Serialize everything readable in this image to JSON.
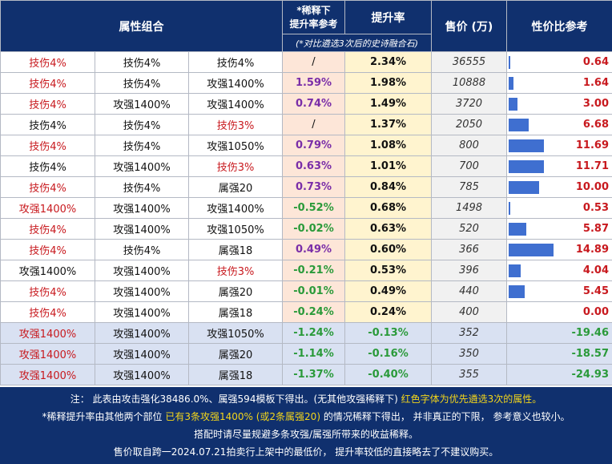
{
  "header": {
    "attr_combo": "属性组合",
    "dilution": "*稀释下\n提升率参考",
    "dilution_line1": "*稀释下",
    "dilution_line2": "提升率参考",
    "dilution_sub": "(*对比遴选3次后的史诗融合石)",
    "increase": "提升率",
    "price": "售价 (万)",
    "ratio": "性价比参考"
  },
  "bar_scale_max": 14.89,
  "rows": [
    {
      "a1": "技伤4%",
      "a1c": "red",
      "a2": "技伤4%",
      "a2c": "blk",
      "a3": "技伤4%",
      "a3c": "blk",
      "dil": "/",
      "dilt": "slash",
      "inc": "2.34%",
      "inct": "pos",
      "price": "36555",
      "ratio": "0.64",
      "low": false
    },
    {
      "a1": "技伤4%",
      "a1c": "red",
      "a2": "技伤4%",
      "a2c": "blk",
      "a3": "攻强1400%",
      "a3c": "blk",
      "dil": "1.59%",
      "dilt": "pos",
      "inc": "1.98%",
      "inct": "pos",
      "price": "10888",
      "ratio": "1.64",
      "low": false
    },
    {
      "a1": "技伤4%",
      "a1c": "red",
      "a2": "攻强1400%",
      "a2c": "blk",
      "a3": "攻强1400%",
      "a3c": "blk",
      "dil": "0.74%",
      "dilt": "pos",
      "inc": "1.49%",
      "inct": "pos",
      "price": "3720",
      "ratio": "3.00",
      "low": false
    },
    {
      "a1": "技伤4%",
      "a1c": "blk",
      "a2": "技伤4%",
      "a2c": "blk",
      "a3": "技伤3%",
      "a3c": "red",
      "dil": "/",
      "dilt": "slash",
      "inc": "1.37%",
      "inct": "pos",
      "price": "2050",
      "ratio": "6.68",
      "low": false
    },
    {
      "a1": "技伤4%",
      "a1c": "red",
      "a2": "技伤4%",
      "a2c": "blk",
      "a3": "攻强1050%",
      "a3c": "blk",
      "dil": "0.79%",
      "dilt": "pos",
      "inc": "1.08%",
      "inct": "pos",
      "price": "800",
      "ratio": "11.69",
      "low": false
    },
    {
      "a1": "技伤4%",
      "a1c": "blk",
      "a2": "攻强1400%",
      "a2c": "blk",
      "a3": "技伤3%",
      "a3c": "red",
      "dil": "0.63%",
      "dilt": "pos",
      "inc": "1.01%",
      "inct": "pos",
      "price": "700",
      "ratio": "11.71",
      "low": false
    },
    {
      "a1": "技伤4%",
      "a1c": "red",
      "a2": "技伤4%",
      "a2c": "blk",
      "a3": "属强20",
      "a3c": "blk",
      "dil": "0.73%",
      "dilt": "pos",
      "inc": "0.84%",
      "inct": "pos",
      "price": "785",
      "ratio": "10.00",
      "low": false
    },
    {
      "a1": "攻强1400%",
      "a1c": "red",
      "a2": "攻强1400%",
      "a2c": "blk",
      "a3": "攻强1400%",
      "a3c": "blk",
      "dil": "-0.52%",
      "dilt": "neg",
      "inc": "0.68%",
      "inct": "pos",
      "price": "1498",
      "ratio": "0.53",
      "low": false
    },
    {
      "a1": "技伤4%",
      "a1c": "red",
      "a2": "攻强1400%",
      "a2c": "blk",
      "a3": "攻强1050%",
      "a3c": "blk",
      "dil": "-0.02%",
      "dilt": "neg",
      "inc": "0.63%",
      "inct": "pos",
      "price": "520",
      "ratio": "5.87",
      "low": false
    },
    {
      "a1": "技伤4%",
      "a1c": "red",
      "a2": "技伤4%",
      "a2c": "blk",
      "a3": "属强18",
      "a3c": "blk",
      "dil": "0.49%",
      "dilt": "pos",
      "inc": "0.60%",
      "inct": "pos",
      "price": "366",
      "ratio": "14.89",
      "low": false
    },
    {
      "a1": "攻强1400%",
      "a1c": "blk",
      "a2": "攻强1400%",
      "a2c": "blk",
      "a3": "技伤3%",
      "a3c": "red",
      "dil": "-0.21%",
      "dilt": "neg",
      "inc": "0.53%",
      "inct": "pos",
      "price": "396",
      "ratio": "4.04",
      "low": false
    },
    {
      "a1": "技伤4%",
      "a1c": "red",
      "a2": "攻强1400%",
      "a2c": "blk",
      "a3": "属强20",
      "a3c": "blk",
      "dil": "-0.01%",
      "dilt": "neg",
      "inc": "0.49%",
      "inct": "pos",
      "price": "440",
      "ratio": "5.45",
      "low": false
    },
    {
      "a1": "技伤4%",
      "a1c": "red",
      "a2": "攻强1400%",
      "a2c": "blk",
      "a3": "属强18",
      "a3c": "blk",
      "dil": "-0.24%",
      "dilt": "neg",
      "inc": "0.24%",
      "inct": "pos",
      "price": "400",
      "ratio": "0.00",
      "low": false
    },
    {
      "a1": "攻强1400%",
      "a1c": "red",
      "a2": "攻强1400%",
      "a2c": "blk",
      "a3": "攻强1050%",
      "a3c": "blk",
      "dil": "-1.24%",
      "dilt": "neg",
      "inc": "-0.13%",
      "inct": "neg",
      "price": "352",
      "ratio": "-19.46",
      "low": true
    },
    {
      "a1": "攻强1400%",
      "a1c": "red",
      "a2": "攻强1400%",
      "a2c": "blk",
      "a3": "属强20",
      "a3c": "blk",
      "dil": "-1.14%",
      "dilt": "neg",
      "inc": "-0.16%",
      "inct": "neg",
      "price": "350",
      "ratio": "-18.57",
      "low": true
    },
    {
      "a1": "攻强1400%",
      "a1c": "red",
      "a2": "攻强1400%",
      "a2c": "blk",
      "a3": "属强18",
      "a3c": "blk",
      "dil": "-1.37%",
      "dilt": "neg",
      "inc": "-0.40%",
      "inct": "neg",
      "price": "355",
      "ratio": "-24.93",
      "low": true
    }
  ],
  "notes": {
    "line1_a": "注： 此表由攻击强化38486.0%、属强594模板下得出。(无其他攻强稀释下) ",
    "line1_b": "红色字体为优先遴选3次的属性。",
    "line2_a": "*稀释提升率由其他两个部位 ",
    "line2_b": "已有3条攻强1400% (或2条属强20)",
    "line2_c": " 的情况稀释下得出， 并非真正的下限， 参考意义也较小。",
    "line3": "搭配时请尽量规避多条攻强/属强所带来的收益稀释。",
    "line4": "售价取自跨一2024.07.21拍卖行上架中的最低价， 提升率较低的直接略去了不建议购买。"
  },
  "colors": {
    "header_bg": "#10306e",
    "red_text": "#c8191e",
    "purple_text": "#7a2ea8",
    "green_text": "#2a9a3a",
    "bar": "#3f6fd0",
    "highlight_yellow": "#f4d61a"
  }
}
